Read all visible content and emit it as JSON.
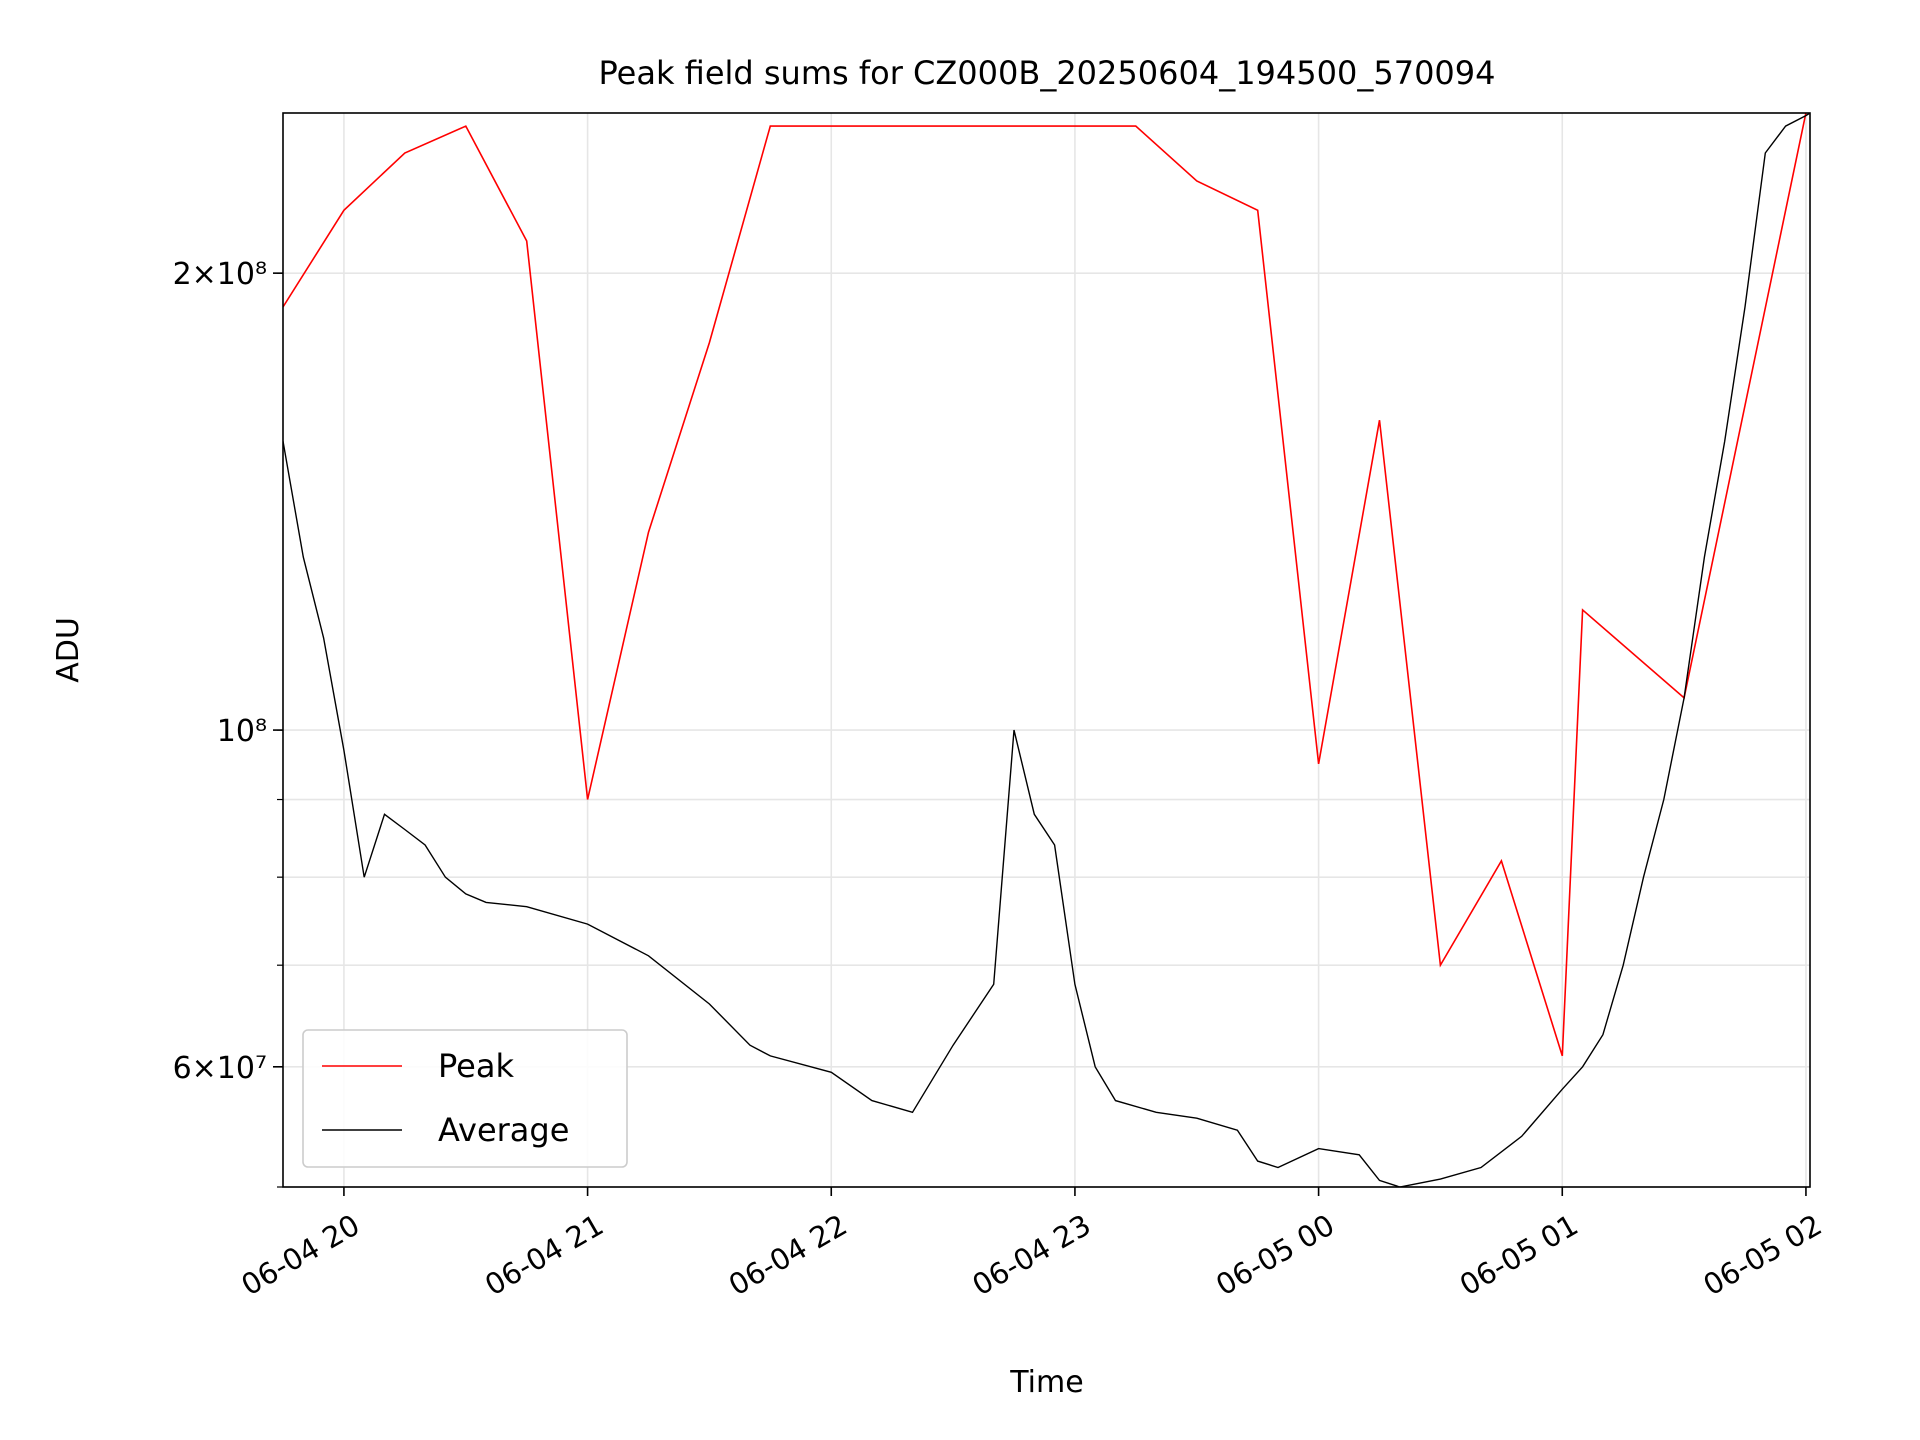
{
  "chart_data": {
    "type": "line",
    "title": "Peak field sums for CZ000B_20250604_194500_570094",
    "xlabel": "Time",
    "ylabel": "ADU",
    "x_scale": "time",
    "y_scale": "log",
    "xlim": [
      "2025-06-04T19:45:00",
      "2025-06-05T02:01:00"
    ],
    "ylim": [
      50000000,
      255000000
    ],
    "x_ticks": [
      {
        "value": "2025-06-04T20:00:00",
        "label": "06-04 20"
      },
      {
        "value": "2025-06-04T21:00:00",
        "label": "06-04 21"
      },
      {
        "value": "2025-06-04T22:00:00",
        "label": "06-04 22"
      },
      {
        "value": "2025-06-04T23:00:00",
        "label": "06-04 23"
      },
      {
        "value": "2025-06-05T00:00:00",
        "label": "06-05 00"
      },
      {
        "value": "2025-06-05T01:00:00",
        "label": "06-05 01"
      },
      {
        "value": "2025-06-05T02:00:00",
        "label": "06-05 02"
      }
    ],
    "y_ticks": [
      {
        "value": 200000000,
        "label": "2×10⁸"
      },
      {
        "value": 100000000,
        "label": "10⁸"
      },
      {
        "value": 60000000,
        "label": "6×10⁷"
      }
    ],
    "y_minor_ticks": [
      200000000,
      100000000,
      90000000,
      80000000,
      70000000,
      60000000,
      50000000
    ],
    "grid": true,
    "legend_position": "lower-left",
    "series": [
      {
        "name": "Average",
        "color": "#000000",
        "x": [
          "2025-06-04T19:45:00",
          "2025-06-04T19:50:00",
          "2025-06-04T19:55:00",
          "2025-06-04T20:00:00",
          "2025-06-04T20:05:00",
          "2025-06-04T20:10:00",
          "2025-06-04T20:15:00",
          "2025-06-04T20:20:00",
          "2025-06-04T20:25:00",
          "2025-06-04T20:30:00",
          "2025-06-04T20:35:00",
          "2025-06-04T20:45:00",
          "2025-06-04T21:00:00",
          "2025-06-04T21:15:00",
          "2025-06-04T21:30:00",
          "2025-06-04T21:40:00",
          "2025-06-04T21:45:00",
          "2025-06-04T22:00:00",
          "2025-06-04T22:10:00",
          "2025-06-04T22:20:00",
          "2025-06-04T22:30:00",
          "2025-06-04T22:40:00",
          "2025-06-04T22:45:00",
          "2025-06-04T22:50:00",
          "2025-06-04T22:55:00",
          "2025-06-04T23:00:00",
          "2025-06-04T23:05:00",
          "2025-06-04T23:10:00",
          "2025-06-04T23:20:00",
          "2025-06-04T23:30:00",
          "2025-06-04T23:40:00",
          "2025-06-04T23:45:00",
          "2025-06-04T23:50:00",
          "2025-06-05T00:00:00",
          "2025-06-05T00:10:00",
          "2025-06-05T00:15:00",
          "2025-06-05T00:20:00",
          "2025-06-05T00:25:00",
          "2025-06-05T00:30:00",
          "2025-06-05T00:40:00",
          "2025-06-05T00:50:00",
          "2025-06-05T01:00:00",
          "2025-06-05T01:05:00",
          "2025-06-05T01:10:00",
          "2025-06-05T01:15:00",
          "2025-06-05T01:20:00",
          "2025-06-05T01:25:00",
          "2025-06-05T01:30:00",
          "2025-06-05T01:35:00",
          "2025-06-05T01:40:00",
          "2025-06-05T01:45:00",
          "2025-06-05T01:50:00",
          "2025-06-05T01:55:00",
          "2025-06-05T02:00:00",
          "2025-06-05T02:01:00"
        ],
        "y": [
          155000000,
          130000000,
          115000000,
          97000000,
          80000000,
          88000000,
          86000000,
          84000000,
          80000000,
          78000000,
          77000000,
          76500000,
          74500000,
          71000000,
          66000000,
          62000000,
          61000000,
          59500000,
          57000000,
          56000000,
          62000000,
          68000000,
          100000000,
          88000000,
          84000000,
          68000000,
          60000000,
          57000000,
          56000000,
          55500000,
          54500000,
          52000000,
          51500000,
          53000000,
          52500000,
          50500000,
          50000000,
          50300000,
          50600000,
          51500000,
          54000000,
          58000000,
          60000000,
          63000000,
          70000000,
          80000000,
          90000000,
          105000000,
          130000000,
          155000000,
          190000000,
          240000000,
          250000000,
          254000000,
          255000000
        ]
      },
      {
        "name": "Peak",
        "color": "#ff0000",
        "x": [
          "2025-06-04T19:45:00",
          "2025-06-04T20:00:00",
          "2025-06-04T20:15:00",
          "2025-06-04T20:30:00",
          "2025-06-04T20:45:00",
          "2025-06-04T21:00:00",
          "2025-06-04T21:15:00",
          "2025-06-04T21:30:00",
          "2025-06-04T21:45:00",
          "2025-06-04T22:00:00",
          "2025-06-04T22:15:00",
          "2025-06-04T22:30:00",
          "2025-06-04T22:45:00",
          "2025-06-04T23:00:00",
          "2025-06-04T23:15:00",
          "2025-06-04T23:30:00",
          "2025-06-04T23:45:00",
          "2025-06-05T00:00:00",
          "2025-06-05T00:15:00",
          "2025-06-05T00:30:00",
          "2025-06-05T00:45:00",
          "2025-06-05T01:00:00",
          "2025-06-05T01:05:00",
          "2025-06-05T01:30:00",
          "2025-06-05T02:00:00"
        ],
        "y": [
          190000000,
          220000000,
          240000000,
          250000000,
          210000000,
          90000000,
          135000000,
          180000000,
          250000000,
          250000000,
          250000000,
          250000000,
          250000000,
          250000000,
          250000000,
          230000000,
          220000000,
          95000000,
          160000000,
          70000000,
          82000000,
          61000000,
          120000000,
          105000000,
          255000000
        ]
      }
    ]
  }
}
